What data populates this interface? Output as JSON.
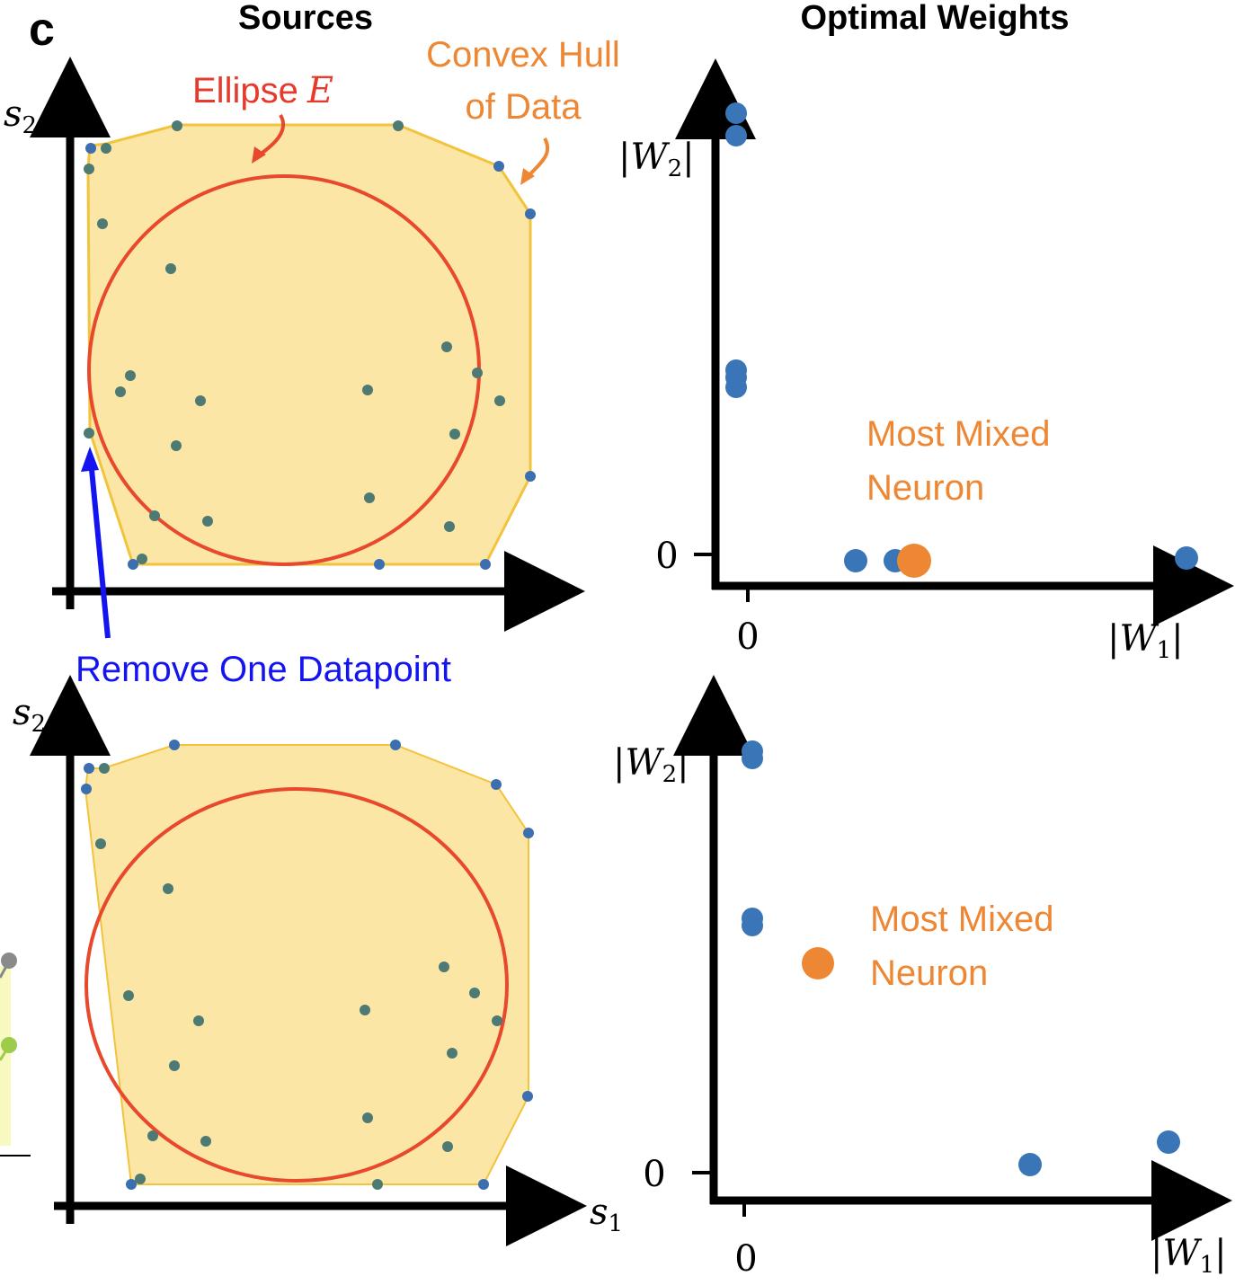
{
  "panel_label": "c",
  "headers": {
    "sources": "Sources",
    "weights": "Optimal Weights"
  },
  "annotations": {
    "convex_hull_line1": "Convex Hull",
    "convex_hull_line2": "of Data",
    "ellipse_word": "Ellipse",
    "ellipse_symbol": "E",
    "remove": "Remove One Datapoint",
    "mixed_line1": "Most Mixed",
    "mixed_line2": "Neuron"
  },
  "axis_labels": {
    "s2_var": "s",
    "s2_sub": "2",
    "s1_var": "s",
    "s1_sub": "1",
    "w2_var": "W",
    "w2_sub": "2",
    "w1_var": "W",
    "w1_sub": "1",
    "zero": "0"
  },
  "colors": {
    "hull_fill": "#fbe6a6",
    "hull_stroke": "#f2c33c",
    "ellipse": "#e8482c",
    "data_point": "#4e7a74",
    "hull_vertex": "#3b6fb0",
    "weight_point": "#3a75b7",
    "mixed_point": "#ee8733",
    "orange_text": "#ee8733",
    "red_text": "#e53a2c",
    "blue_arrow": "#1414f0"
  }
}
